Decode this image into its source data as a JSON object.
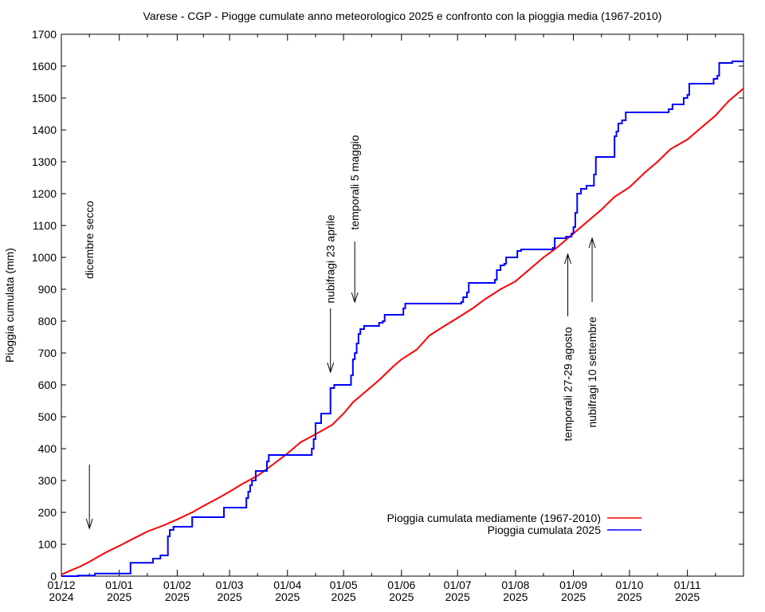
{
  "chart_data": {
    "type": "line",
    "title": "Varese - CGP - Piogge cumulate anno meteorologico 2025 e confronto con la pioggia media (1967-2010)",
    "xlabel": "",
    "ylabel": "Pioggia cumulata (mm)",
    "x_unit": "days since 01/12/2024",
    "xlim": [
      0,
      365
    ],
    "ylim": [
      0,
      1700
    ],
    "grid": false,
    "legend_position": "bottom-right",
    "y_ticks": [
      0,
      100,
      200,
      300,
      400,
      500,
      600,
      700,
      800,
      900,
      1000,
      1100,
      1200,
      1300,
      1400,
      1500,
      1600,
      1700
    ],
    "x_ticks": [
      {
        "day": 0,
        "label": [
          "01/12",
          "2024"
        ]
      },
      {
        "day": 31,
        "label": [
          "01/01",
          "2025"
        ]
      },
      {
        "day": 62,
        "label": [
          "01/02",
          "2025"
        ]
      },
      {
        "day": 90,
        "label": [
          "01/03",
          "2025"
        ]
      },
      {
        "day": 121,
        "label": [
          "01/04",
          "2025"
        ]
      },
      {
        "day": 151,
        "label": [
          "01/05",
          "2025"
        ]
      },
      {
        "day": 182,
        "label": [
          "01/06",
          "2025"
        ]
      },
      {
        "day": 212,
        "label": [
          "01/07",
          "2025"
        ]
      },
      {
        "day": 243,
        "label": [
          "01/08",
          "2025"
        ]
      },
      {
        "day": 274,
        "label": [
          "01/09",
          "2025"
        ]
      },
      {
        "day": 304,
        "label": [
          "01/10",
          "2025"
        ]
      },
      {
        "day": 335,
        "label": [
          "01/11",
          "2025"
        ]
      }
    ],
    "minor_tick_days": [
      15,
      46,
      76,
      105,
      136,
      166,
      197,
      227,
      258,
      289,
      319,
      350
    ],
    "series": [
      {
        "name": "Pioggia cumulata mediamente (1967-2010)",
        "color": "#ff0000",
        "style": "line",
        "points": [
          [
            0,
            5
          ],
          [
            5,
            18
          ],
          [
            10,
            30
          ],
          [
            15,
            45
          ],
          [
            20,
            62
          ],
          [
            25,
            78
          ],
          [
            31,
            95
          ],
          [
            40,
            122
          ],
          [
            46,
            140
          ],
          [
            55,
            160
          ],
          [
            62,
            178
          ],
          [
            70,
            200
          ],
          [
            76,
            220
          ],
          [
            84,
            245
          ],
          [
            90,
            265
          ],
          [
            97,
            290
          ],
          [
            105,
            315
          ],
          [
            112,
            345
          ],
          [
            121,
            385
          ],
          [
            128,
            420
          ],
          [
            136,
            445
          ],
          [
            145,
            475
          ],
          [
            151,
            510
          ],
          [
            156,
            545
          ],
          [
            162,
            575
          ],
          [
            170,
            615
          ],
          [
            178,
            660
          ],
          [
            182,
            680
          ],
          [
            190,
            710
          ],
          [
            197,
            755
          ],
          [
            205,
            785
          ],
          [
            212,
            810
          ],
          [
            220,
            840
          ],
          [
            227,
            870
          ],
          [
            235,
            900
          ],
          [
            243,
            925
          ],
          [
            250,
            960
          ],
          [
            258,
            1000
          ],
          [
            265,
            1030
          ],
          [
            274,
            1075
          ],
          [
            282,
            1115
          ],
          [
            289,
            1150
          ],
          [
            296,
            1190
          ],
          [
            304,
            1220
          ],
          [
            312,
            1265
          ],
          [
            319,
            1300
          ],
          [
            326,
            1340
          ],
          [
            335,
            1370
          ],
          [
            342,
            1405
          ],
          [
            350,
            1445
          ],
          [
            357,
            1490
          ],
          [
            365,
            1530
          ]
        ]
      },
      {
        "name": "Pioggia cumulata 2025",
        "color": "#0000ff",
        "style": "steps",
        "points": [
          [
            0,
            0
          ],
          [
            9,
            2
          ],
          [
            18,
            8
          ],
          [
            37,
            42
          ],
          [
            49,
            55
          ],
          [
            53,
            65
          ],
          [
            57,
            125
          ],
          [
            58,
            145
          ],
          [
            60,
            155
          ],
          [
            70,
            185
          ],
          [
            87,
            215
          ],
          [
            99,
            245
          ],
          [
            100,
            265
          ],
          [
            101,
            285
          ],
          [
            102,
            300
          ],
          [
            104,
            330
          ],
          [
            110,
            360
          ],
          [
            111,
            380
          ],
          [
            134,
            400
          ],
          [
            135,
            430
          ],
          [
            136,
            480
          ],
          [
            139,
            510
          ],
          [
            144,
            590
          ],
          [
            146,
            600
          ],
          [
            155,
            630
          ],
          [
            156,
            680
          ],
          [
            157,
            700
          ],
          [
            158,
            730
          ],
          [
            159,
            760
          ],
          [
            160,
            775
          ],
          [
            162,
            785
          ],
          [
            170,
            795
          ],
          [
            172,
            800
          ],
          [
            173,
            820
          ],
          [
            183,
            840
          ],
          [
            184,
            855
          ],
          [
            214,
            860
          ],
          [
            215,
            875
          ],
          [
            217,
            890
          ],
          [
            218,
            920
          ],
          [
            232,
            930
          ],
          [
            233,
            960
          ],
          [
            235,
            975
          ],
          [
            237,
            980
          ],
          [
            238,
            1000
          ],
          [
            244,
            1020
          ],
          [
            246,
            1025
          ],
          [
            263,
            1030
          ],
          [
            264,
            1060
          ],
          [
            270,
            1065
          ],
          [
            273,
            1075
          ],
          [
            274,
            1095
          ],
          [
            275,
            1140
          ],
          [
            276,
            1200
          ],
          [
            278,
            1215
          ],
          [
            281,
            1225
          ],
          [
            285,
            1260
          ],
          [
            286,
            1315
          ],
          [
            296,
            1380
          ],
          [
            297,
            1395
          ],
          [
            298,
            1420
          ],
          [
            300,
            1430
          ],
          [
            302,
            1455
          ],
          [
            325,
            1465
          ],
          [
            327,
            1480
          ],
          [
            333,
            1500
          ],
          [
            335,
            1510
          ],
          [
            336,
            1545
          ],
          [
            349,
            1560
          ],
          [
            351,
            1570
          ],
          [
            352,
            1610
          ],
          [
            359,
            1615
          ],
          [
            365,
            1615
          ]
        ]
      }
    ],
    "annotations": [
      {
        "text": "dicembre secco",
        "day": 15,
        "arrow": "down",
        "text_top_mm": 1150,
        "text_bottom_mm": 960,
        "arrow_from_mm": 350,
        "arrow_to_mm": 150
      },
      {
        "text": "nubifragi 23 aprile",
        "day": 144,
        "arrow": "down",
        "text_top_mm": 1150,
        "text_bottom_mm": 840,
        "arrow_from_mm": 840,
        "arrow_to_mm": 640
      },
      {
        "text": "temporali 5 maggio",
        "day": 157,
        "arrow": "down",
        "text_top_mm": 1390,
        "text_bottom_mm": 1080,
        "arrow_from_mm": 1050,
        "arrow_to_mm": 860
      },
      {
        "text": "temporali 27-29 agosto",
        "day": 271,
        "arrow": "up",
        "text_top_mm": 800,
        "text_bottom_mm": 405,
        "arrow_from_mm": 815,
        "arrow_to_mm": 1010
      },
      {
        "text": "nubifragi 10 settembre",
        "day": 284,
        "arrow": "up",
        "text_top_mm": 830,
        "text_bottom_mm": 450,
        "arrow_from_mm": 860,
        "arrow_to_mm": 1060
      }
    ]
  }
}
